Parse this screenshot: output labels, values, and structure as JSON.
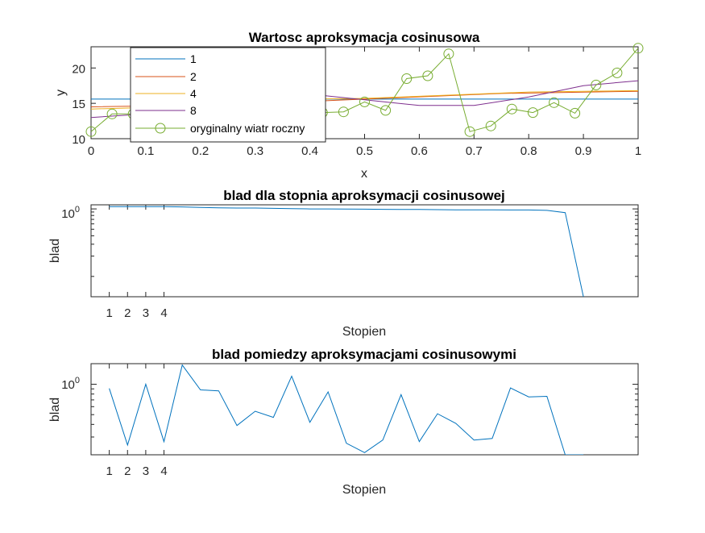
{
  "chart_data": [
    {
      "type": "line",
      "title": "Wartosc aproksymacja cosinusowa",
      "xlabel": "x",
      "ylabel": "y",
      "xlim": [
        0,
        1
      ],
      "ylim": [
        10,
        23
      ],
      "xticks": [
        "0",
        "0.1",
        "0.2",
        "0.3",
        "0.4",
        "0.5",
        "0.6",
        "0.7",
        "0.8",
        "0.9",
        "1"
      ],
      "yticks": [
        "10",
        "15",
        "20"
      ],
      "legend_position": "top-left",
      "series": [
        {
          "name": "1",
          "color": "#0072BD",
          "x": [
            0,
            1
          ],
          "values": [
            15.6,
            15.6
          ]
        },
        {
          "name": "2",
          "color": "#D95319",
          "x": [
            0,
            0.25,
            0.5,
            0.75,
            1
          ],
          "values": [
            14.5,
            14.8,
            15.6,
            16.4,
            16.7
          ]
        },
        {
          "name": "4",
          "color": "#EDB120",
          "x": [
            0,
            0.1,
            0.2,
            0.3,
            0.4,
            0.5,
            0.6,
            0.7,
            0.8,
            0.9,
            1
          ],
          "values": [
            14.2,
            14.4,
            14.8,
            15.3,
            15.6,
            15.7,
            16.0,
            16.3,
            16.6,
            16.7,
            16.8
          ]
        },
        {
          "name": "8",
          "color": "#7E2F8E",
          "x": [
            0,
            0.1,
            0.2,
            0.3,
            0.4,
            0.5,
            0.6,
            0.7,
            0.8,
            0.9,
            1
          ],
          "values": [
            13.0,
            13.5,
            14.8,
            15.9,
            16.3,
            15.5,
            14.7,
            14.7,
            15.9,
            17.5,
            18.2
          ]
        },
        {
          "name": "oryginalny wiatr roczny",
          "color": "#77AC30",
          "marker": "circle",
          "x": [
            0,
            0.0385,
            0.0769,
            0.1154,
            0.1538,
            0.1923,
            0.2308,
            0.2692,
            0.3077,
            0.3462,
            0.3846,
            0.4231,
            0.4615,
            0.5,
            0.5385,
            0.5769,
            0.6154,
            0.6538,
            0.6923,
            0.7308,
            0.7692,
            0.8077,
            0.8462,
            0.8846,
            0.9231,
            0.9615,
            1
          ],
          "values": [
            11.0,
            13.5,
            13.5,
            13.8,
            14.2,
            13.9,
            13.6,
            14.5,
            14.2,
            13.8,
            14.0,
            13.7,
            13.8,
            15.2,
            14.0,
            18.5,
            18.9,
            22.0,
            11.0,
            11.8,
            14.2,
            13.7,
            15.1,
            13.6,
            17.6,
            19.3,
            22.8
          ]
        }
      ]
    },
    {
      "type": "line",
      "title": "blad dla stopnia aproksymacji cosinusowej",
      "xlabel": "Stopien",
      "ylabel": "blad",
      "yscale": "log",
      "xlim": [
        0,
        30
      ],
      "xticks": [
        "1",
        "2",
        "3",
        "4"
      ],
      "ytick_label": "10",
      "ytick_exponent": "0",
      "ylim": [
        0.05,
        1.15
      ],
      "series": [
        {
          "color": "#0072BD",
          "x": [
            1,
            2,
            3,
            4,
            5,
            6,
            7,
            8,
            9,
            10,
            11,
            12,
            13,
            14,
            15,
            16,
            17,
            18,
            19,
            20,
            21,
            22,
            23,
            24,
            25,
            26,
            27
          ],
          "values": [
            1.08,
            1.08,
            1.08,
            1.08,
            1.07,
            1.05,
            1.04,
            1.03,
            1.03,
            1.02,
            1.01,
            1.0,
            1.0,
            0.995,
            0.99,
            0.985,
            0.98,
            0.98,
            0.975,
            0.97,
            0.97,
            0.97,
            0.965,
            0.965,
            0.95,
            0.88,
            0.05
          ]
        }
      ]
    },
    {
      "type": "line",
      "title": "blad pomiedzy aproksymacjami cosinusowymi",
      "xlabel": "Stopien",
      "ylabel": "blad",
      "yscale": "log",
      "xlim": [
        0,
        30
      ],
      "xticks": [
        "1",
        "2",
        "3",
        "4"
      ],
      "ytick_label": "10",
      "ytick_exponent": "0",
      "ylim": [
        0.2,
        1.6
      ],
      "series": [
        {
          "color": "#0072BD",
          "x": [
            1,
            2,
            3,
            4,
            5,
            6,
            7,
            8,
            9,
            10,
            11,
            12,
            13,
            14,
            15,
            16,
            17,
            18,
            19,
            20,
            21,
            22,
            23,
            24,
            25,
            26,
            27
          ],
          "values": [
            0.91,
            0.25,
            1.0,
            0.27,
            1.55,
            0.88,
            0.86,
            0.39,
            0.54,
            0.47,
            1.2,
            0.42,
            0.84,
            0.26,
            0.21,
            0.28,
            0.79,
            0.27,
            0.51,
            0.41,
            0.28,
            0.29,
            0.92,
            0.75,
            0.76,
            0.2,
            0.2
          ]
        }
      ]
    }
  ]
}
